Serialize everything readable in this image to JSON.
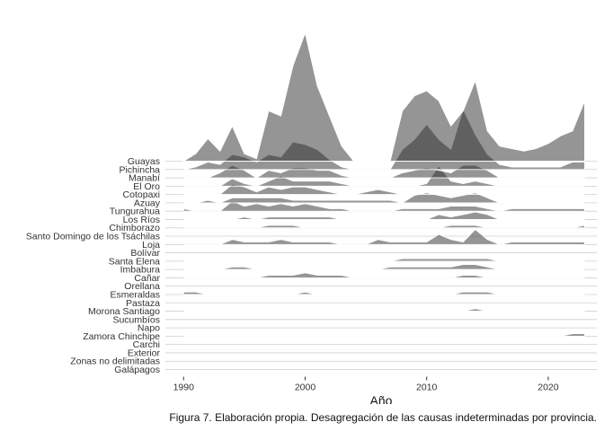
{
  "caption": "Figura 7. Elaboración propia. Desagregación de las causas indeterminadas por provincia.",
  "colors": {
    "ridge_fill": "#2b2b2b",
    "ridge_stroke": "#ffffff",
    "baseline": "#cfcfcf",
    "text": "#333333"
  },
  "chart_data": {
    "type": "area",
    "subtype": "ridgeline",
    "title": "",
    "xlabel": "Año",
    "ylabel": "",
    "xlim": [
      1988.5,
      2024
    ],
    "x_ticks": [
      1990,
      2000,
      2010,
      2020
    ],
    "grid": false,
    "legend": "none",
    "x": [
      1990,
      1991,
      1992,
      1993,
      1994,
      1995,
      1996,
      1997,
      1998,
      1999,
      2000,
      2001,
      2002,
      2003,
      2004,
      2005,
      2006,
      2007,
      2008,
      2009,
      2010,
      2011,
      2012,
      2013,
      2014,
      2015,
      2016,
      2017,
      2018,
      2019,
      2020,
      2021,
      2022,
      2023
    ],
    "categories": [
      "Guayas",
      "Pichincha",
      "Manabí",
      "El Oro",
      "Cotopaxi",
      "Azuay",
      "Tungurahua",
      "Los Ríos",
      "Chimborazo",
      "Santo Domingo de los Tsáchilas",
      "Loja",
      "Bolívar",
      "Santa Elena",
      "Imbabura",
      "Cañar",
      "Orellana",
      "Esmeraldas",
      "Pastaza",
      "Morona Santiago",
      "Sucumbíos",
      "Napo",
      "Zamora Chinchipe",
      "Carchi",
      "Exterior",
      "Zonas no delimitadas",
      "Galápagos"
    ],
    "series": [
      {
        "name": "Guayas",
        "values": [
          0,
          1.5,
          4.5,
          2,
          7,
          1.5,
          0.5,
          10,
          9,
          19,
          25.5,
          15,
          9,
          3,
          0,
          0,
          0,
          0,
          10,
          13,
          14,
          12,
          7,
          10,
          16,
          6,
          3,
          2.5,
          2,
          2.5,
          3.5,
          5,
          6,
          12
        ]
      },
      {
        "name": "Pichincha",
        "values": [
          0,
          0.5,
          1.5,
          1,
          3,
          2.5,
          1.5,
          3,
          2.5,
          5.5,
          5,
          4,
          2,
          0.5,
          0,
          0,
          0,
          0,
          4,
          6,
          9,
          6,
          4,
          12,
          7,
          3,
          1,
          0.5,
          0.5,
          0.5,
          0.5,
          0.5,
          1.5,
          1.5
        ]
      },
      {
        "name": "Manabí",
        "values": [
          0,
          0,
          0,
          1,
          2.5,
          1.5,
          0,
          1.5,
          1,
          2,
          2,
          1.5,
          1.5,
          0.5,
          0,
          0,
          0,
          0,
          1,
          1.5,
          2,
          1.5,
          1,
          2.5,
          2.5,
          1.5,
          0,
          0,
          0,
          0,
          0,
          0,
          0,
          0
        ]
      },
      {
        "name": "El Oro",
        "values": [
          0,
          0,
          0,
          0,
          1.5,
          0.5,
          0,
          1,
          2,
          1,
          1,
          1,
          1,
          0.5,
          0,
          0,
          0,
          0,
          0,
          0,
          0.5,
          4,
          1,
          0.5,
          1,
          0.5,
          0,
          0,
          0,
          0,
          0,
          0,
          0,
          0
        ]
      },
      {
        "name": "Cotopaxi",
        "values": [
          0,
          0,
          0,
          0,
          2,
          1.5,
          0.5,
          1.5,
          1,
          1.5,
          1.5,
          1,
          0.5,
          0,
          0,
          0.5,
          1,
          0.5,
          0,
          0,
          0,
          0,
          0,
          0,
          0,
          0,
          0,
          0,
          0,
          0,
          0,
          0,
          0,
          0
        ]
      },
      {
        "name": "Azuay",
        "values": [
          0,
          0,
          0.5,
          0,
          1,
          1,
          1,
          1,
          1,
          0.5,
          0.5,
          0.5,
          0.5,
          0.5,
          0.5,
          0.5,
          0.5,
          0.5,
          0,
          1.5,
          2,
          1.5,
          1,
          1.5,
          2,
          1,
          0,
          0,
          0,
          0,
          0,
          0,
          0,
          0
        ]
      },
      {
        "name": "Tungurahua",
        "values": [
          0.5,
          0,
          0,
          0,
          2,
          1,
          1.5,
          1,
          1.5,
          1,
          1.5,
          1,
          0.5,
          0.5,
          0,
          0,
          0,
          0,
          0.5,
          0.5,
          0.5,
          0.5,
          1,
          1,
          1,
          0.5,
          0,
          0.5,
          0.5,
          0.5,
          0.5,
          0.5,
          0.5,
          0.5
        ]
      },
      {
        "name": "Los Ríos",
        "values": [
          0,
          0,
          0,
          0,
          0,
          0.5,
          0,
          0.5,
          0.5,
          0.5,
          0.5,
          0.5,
          0.5,
          0,
          0,
          0,
          0,
          0,
          0,
          0,
          0,
          1,
          0.5,
          1,
          1.5,
          1,
          0,
          0,
          0,
          0,
          0,
          0,
          0,
          0
        ]
      },
      {
        "name": "Chimborazo",
        "values": [
          0,
          0,
          0,
          0,
          0,
          0,
          0,
          0.5,
          0.5,
          0.5,
          0,
          0,
          0,
          0,
          0,
          0,
          0,
          0,
          0,
          0,
          0,
          0,
          0.5,
          0.5,
          0.5,
          0,
          0,
          0,
          0,
          0,
          0,
          0,
          0,
          0.5
        ]
      },
      {
        "name": "Santo Domingo de los Tsáchilas",
        "values": [
          0,
          0,
          0,
          0,
          0,
          0,
          0,
          0,
          0,
          0,
          0,
          0,
          0,
          0,
          0,
          0,
          0,
          0,
          0,
          0,
          0,
          0,
          0,
          0,
          0,
          0,
          0,
          0,
          0,
          0,
          0,
          0,
          0,
          0
        ]
      },
      {
        "name": "Loja",
        "values": [
          0,
          0,
          0,
          0,
          1,
          0.5,
          0.5,
          0.5,
          1,
          0.5,
          0.5,
          0.5,
          0.5,
          0,
          0,
          0,
          1,
          0.5,
          0.5,
          0.5,
          0.5,
          2,
          1,
          0.5,
          3,
          1,
          0,
          0.5,
          0.5,
          0.5,
          0.5,
          0.5,
          0.5,
          0.5
        ]
      },
      {
        "name": "Bolívar",
        "values": [
          0,
          0,
          0,
          0,
          0,
          0,
          0,
          0,
          0,
          0,
          0,
          0,
          0,
          0,
          0,
          0,
          0,
          0,
          0,
          0,
          0,
          0,
          0,
          0,
          0,
          0,
          0,
          0,
          0,
          0,
          0,
          0,
          0,
          0
        ]
      },
      {
        "name": "Santa Elena",
        "values": [
          0,
          0,
          0,
          0,
          0,
          0,
          0,
          0,
          0,
          0,
          0,
          0,
          0,
          0,
          0,
          0,
          0,
          0,
          0.5,
          0.5,
          0.5,
          0.5,
          0.5,
          0.5,
          0.5,
          0.5,
          0,
          0,
          0,
          0,
          0,
          0,
          0,
          0
        ]
      },
      {
        "name": "Imbabura",
        "values": [
          0,
          0,
          0,
          0,
          0.5,
          0.5,
          0,
          0,
          0,
          0,
          0,
          0,
          0,
          0,
          0,
          0,
          0,
          0.5,
          0.5,
          0.5,
          0.5,
          0.5,
          0.5,
          1,
          1,
          0.5,
          0,
          0,
          0,
          0,
          0,
          0,
          0,
          0
        ]
      },
      {
        "name": "Cañar",
        "values": [
          0,
          0,
          0,
          0,
          0,
          0,
          0,
          0.5,
          0.5,
          0.5,
          1,
          0.5,
          0.5,
          0.5,
          0,
          0,
          0,
          0,
          0,
          0,
          0,
          0,
          0,
          0.5,
          0.5,
          0,
          0,
          0,
          0,
          0,
          0,
          0,
          0,
          0
        ]
      },
      {
        "name": "Orellana",
        "values": [
          0,
          0,
          0,
          0,
          0,
          0,
          0,
          0,
          0,
          0,
          0,
          0,
          0,
          0,
          0,
          0,
          0,
          0,
          0,
          0,
          0,
          0,
          0,
          0,
          0,
          0,
          0,
          0,
          0,
          0,
          0,
          0,
          0,
          0
        ]
      },
      {
        "name": "Esmeraldas",
        "values": [
          0.5,
          0.5,
          0,
          0,
          0,
          0,
          0,
          0,
          0,
          0,
          0.5,
          0,
          0,
          0,
          0,
          0,
          0,
          0,
          0,
          0,
          0,
          0,
          0,
          0.5,
          0.5,
          0.5,
          0,
          0,
          0,
          0,
          0,
          0,
          0,
          0
        ]
      },
      {
        "name": "Pastaza",
        "values": [
          0,
          0,
          0,
          0,
          0,
          0,
          0,
          0,
          0,
          0,
          0,
          0,
          0,
          0,
          0,
          0,
          0,
          0,
          0,
          0,
          0,
          0,
          0,
          0,
          0,
          0,
          0,
          0,
          0,
          0,
          0,
          0,
          0,
          0
        ]
      },
      {
        "name": "Morona Santiago",
        "values": [
          0,
          0,
          0,
          0,
          0,
          0,
          0,
          0,
          0,
          0,
          0,
          0,
          0,
          0,
          0,
          0,
          0,
          0,
          0,
          0,
          0,
          0,
          0,
          0,
          0.5,
          0,
          0,
          0,
          0,
          0,
          0,
          0,
          0,
          0
        ]
      },
      {
        "name": "Sucumbíos",
        "values": [
          0,
          0,
          0,
          0,
          0,
          0,
          0,
          0,
          0,
          0,
          0,
          0,
          0,
          0,
          0,
          0,
          0,
          0,
          0,
          0,
          0,
          0,
          0,
          0,
          0,
          0,
          0,
          0,
          0,
          0,
          0,
          0,
          0,
          0
        ]
      },
      {
        "name": "Napo",
        "values": [
          0,
          0,
          0,
          0,
          0,
          0,
          0,
          0,
          0,
          0,
          0,
          0,
          0,
          0,
          0,
          0,
          0,
          0,
          0,
          0,
          0,
          0,
          0,
          0,
          0,
          0,
          0,
          0,
          0,
          0,
          0,
          0,
          0,
          0
        ]
      },
      {
        "name": "Zamora Chinchipe",
        "values": [
          0,
          0,
          0,
          0,
          0,
          0,
          0,
          0,
          0,
          0,
          0,
          0,
          0,
          0,
          0,
          0,
          0,
          0,
          0,
          0,
          0,
          0,
          0,
          0,
          0,
          0,
          0,
          0,
          0,
          0,
          0,
          0,
          0.5,
          0.5
        ]
      },
      {
        "name": "Carchi",
        "values": [
          0,
          0,
          0,
          0,
          0,
          0,
          0,
          0,
          0,
          0,
          0,
          0,
          0,
          0,
          0,
          0,
          0,
          0,
          0,
          0,
          0,
          0,
          0,
          0,
          0,
          0,
          0,
          0,
          0,
          0,
          0,
          0,
          0,
          0
        ]
      },
      {
        "name": "Exterior",
        "values": [
          0,
          0,
          0,
          0,
          0,
          0,
          0,
          0,
          0,
          0,
          0,
          0,
          0,
          0,
          0,
          0,
          0,
          0,
          0,
          0,
          0,
          0,
          0,
          0,
          0,
          0,
          0,
          0,
          0,
          0,
          0,
          0,
          0,
          0
        ]
      },
      {
        "name": "Zonas no delimitadas",
        "values": [
          0,
          0,
          0,
          0,
          0,
          0,
          0,
          0,
          0,
          0,
          0,
          0,
          0,
          0,
          0,
          0,
          0,
          0,
          0,
          0,
          0,
          0,
          0,
          0,
          0,
          0,
          0,
          0,
          0,
          0,
          0,
          0,
          0,
          0
        ]
      },
      {
        "name": "Galápagos",
        "values": [
          0,
          0,
          0,
          0,
          0,
          0,
          0,
          0,
          0,
          0,
          0,
          0,
          0,
          0,
          0,
          0,
          0,
          0,
          0,
          0,
          0,
          0,
          0,
          0,
          0,
          0,
          0,
          0,
          0,
          0,
          0,
          0,
          0,
          0
        ]
      }
    ]
  }
}
